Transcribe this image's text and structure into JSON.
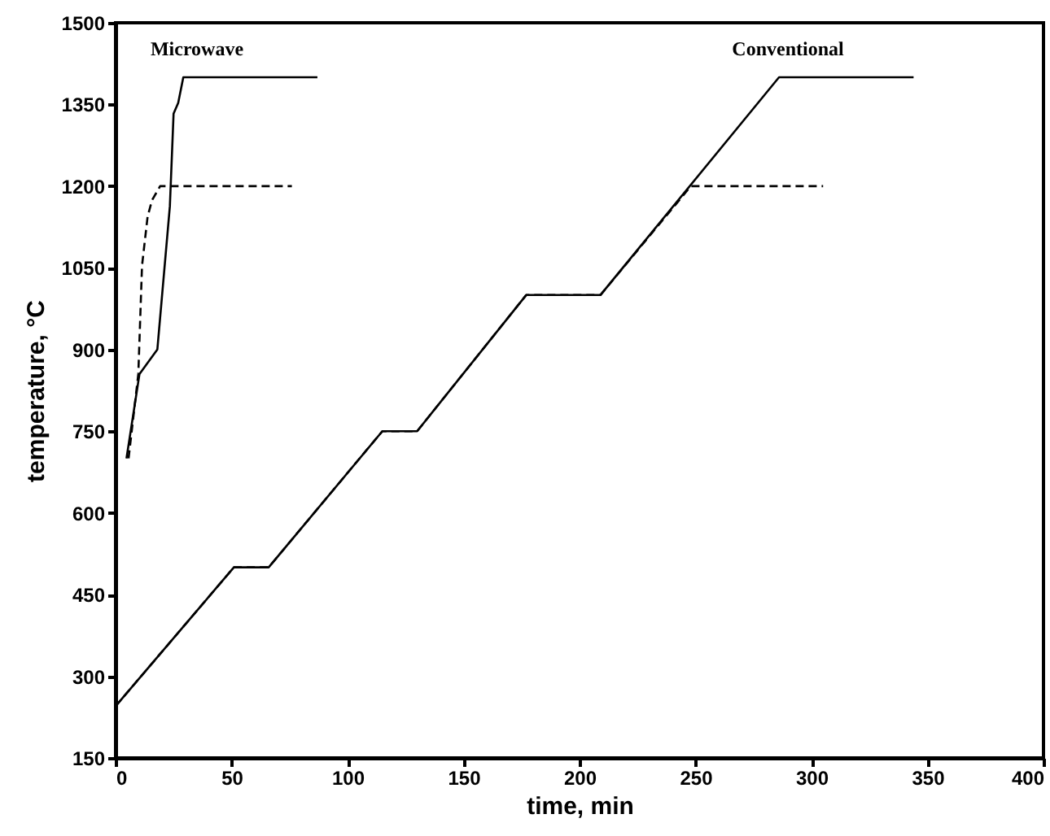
{
  "chart_data": {
    "type": "line",
    "xlabel": "time, min",
    "ylabel": "temperature, °C",
    "xlim": [
      0,
      400
    ],
    "xticks": [
      0,
      50,
      100,
      150,
      200,
      250,
      300,
      350,
      400
    ],
    "ylim": [
      150,
      1500
    ],
    "yticks": [
      150,
      300,
      450,
      600,
      750,
      900,
      1050,
      1200,
      1350,
      1500
    ],
    "series": [
      {
        "color": "#000000",
        "line_style": "solid",
        "x": [
          4.7,
          10.3,
          18,
          23.4,
          25,
          27,
          29.2,
          87
        ],
        "values": [
          700,
          855,
          900,
          1163,
          1333,
          1353,
          1400,
          1400
        ]
      },
      {
        "color": "#000000",
        "line_style": "dashed",
        "x": [
          5.6,
          9.8,
          11.4,
          13.8,
          15.7,
          19.2,
          76
        ],
        "values": [
          700,
          855,
          1054,
          1144,
          1174,
          1200,
          1200
        ]
      },
      {
        "color": "#000000",
        "line_style": "solid",
        "x": [
          0,
          51,
          66,
          115,
          130,
          177,
          209,
          286,
          344
        ],
        "values": [
          245,
          500,
          500,
          750,
          750,
          1000,
          1000,
          1400,
          1400
        ]
      },
      {
        "color": "#000000",
        "line_style": "dashed",
        "x": [
          0,
          51,
          66,
          115,
          130,
          177,
          209,
          248,
          305
        ],
        "values": [
          245,
          500,
          500,
          750,
          750,
          1000,
          1000,
          1200,
          1200
        ]
      }
    ],
    "annotations": [
      "Microwave",
      "Conventional"
    ]
  }
}
